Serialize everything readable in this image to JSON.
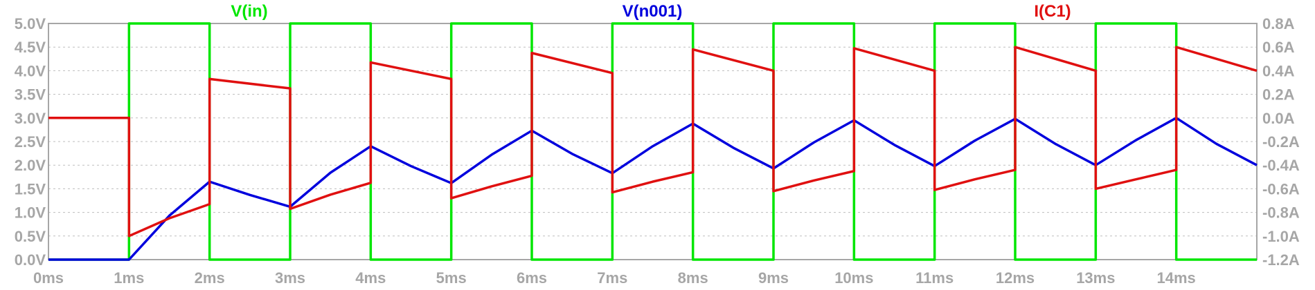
{
  "chart_data": {
    "type": "line",
    "title": "",
    "xlabel": "",
    "ylabel": "",
    "x_unit": "ms",
    "xlim": [
      0,
      15
    ],
    "ylim_left": [
      0,
      5
    ],
    "ylim_right": [
      -1.2,
      0.8
    ],
    "grid": true,
    "legend_placement": "top",
    "x_ticks": [
      "0ms",
      "1ms",
      "2ms",
      "3ms",
      "4ms",
      "5ms",
      "6ms",
      "7ms",
      "8ms",
      "9ms",
      "10ms",
      "11ms",
      "12ms",
      "13ms",
      "14ms"
    ],
    "y_ticks_left": [
      "0.0V",
      "0.5V",
      "1.0V",
      "1.5V",
      "2.0V",
      "2.5V",
      "3.0V",
      "3.5V",
      "4.0V",
      "4.5V",
      "5.0V"
    ],
    "y_ticks_right": [
      "-1.2A",
      "-1.0A",
      "-0.8A",
      "-0.6A",
      "-0.4A",
      "-0.2A",
      "0.0A",
      "0.2A",
      "0.4A",
      "0.6A",
      "0.8A"
    ],
    "series": [
      {
        "name": "V(in)",
        "axis": "left",
        "color": "#00e600",
        "x": [
          0,
          1,
          1,
          2,
          2,
          3,
          3,
          4,
          4,
          5,
          5,
          6,
          6,
          7,
          7,
          8,
          8,
          9,
          9,
          10,
          10,
          11,
          11,
          12,
          12,
          13,
          13,
          14,
          14,
          15
        ],
        "y": [
          0,
          0,
          5,
          5,
          0,
          0,
          5,
          5,
          0,
          0,
          5,
          5,
          0,
          0,
          5,
          5,
          0,
          0,
          5,
          5,
          0,
          0,
          5,
          5,
          0,
          0,
          5,
          5,
          0,
          0
        ]
      },
      {
        "name": "V(n001)",
        "axis": "left",
        "color": "#0000dd",
        "x": [
          0,
          1,
          1.5,
          2,
          2.5,
          3,
          3.5,
          4,
          4.5,
          5,
          5.5,
          6,
          6.5,
          7,
          7.5,
          8,
          8.5,
          9,
          9.5,
          10,
          10.5,
          11,
          11.5,
          12,
          12.5,
          13,
          13.5,
          14,
          14.5,
          15
        ],
        "y": [
          0,
          0,
          0.93,
          1.65,
          1.37,
          1.12,
          1.84,
          2.4,
          1.98,
          1.62,
          2.22,
          2.73,
          2.24,
          1.83,
          2.4,
          2.88,
          2.37,
          1.93,
          2.48,
          2.95,
          2.43,
          1.98,
          2.52,
          2.98,
          2.45,
          2.0,
          2.53,
          3.0,
          2.45,
          2.0
        ]
      },
      {
        "name": "I(C1)",
        "axis": "right",
        "color": "#e01010",
        "x": [
          0,
          1,
          1,
          1.5,
          2,
          2,
          3,
          3,
          3.5,
          4,
          4,
          5,
          5,
          5.5,
          6,
          6,
          7,
          7,
          7.5,
          8,
          8,
          9,
          9,
          9.5,
          10,
          10,
          11,
          11,
          11.5,
          12,
          12,
          13,
          13,
          13.5,
          14,
          14,
          15
        ],
        "y": [
          0.0,
          0.0,
          -1.0,
          -0.85,
          -0.73,
          0.33,
          0.25,
          -0.77,
          -0.65,
          -0.55,
          0.47,
          0.33,
          -0.68,
          -0.58,
          -0.49,
          0.55,
          0.38,
          -0.63,
          -0.54,
          -0.46,
          0.58,
          0.4,
          -0.62,
          -0.53,
          -0.45,
          0.59,
          0.4,
          -0.61,
          -0.52,
          -0.44,
          0.6,
          0.4,
          -0.6,
          -0.52,
          -0.44,
          0.6,
          0.4
        ]
      }
    ]
  }
}
